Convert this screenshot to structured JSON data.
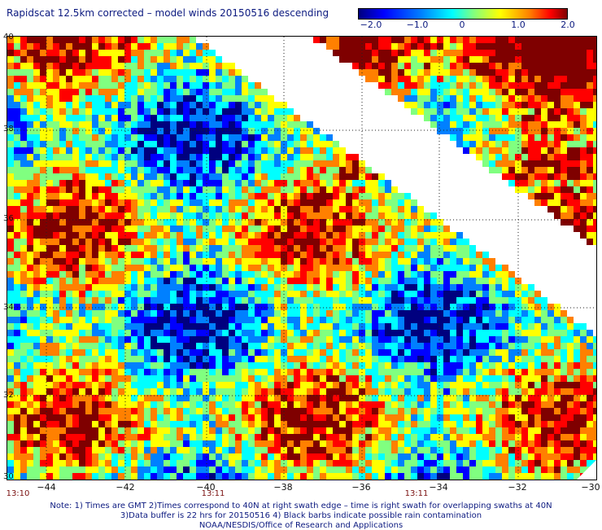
{
  "title": "Rapidscat 12.5km corrected – model winds 20150516 descending",
  "colorbar": {
    "ticks": [
      {
        "label": "−2.0",
        "value": -2.0
      },
      {
        "label": "−1.0",
        "value": -1.0
      },
      {
        "label": "0",
        "value": 0
      },
      {
        "label": "1.0",
        "value": 1.0
      },
      {
        "label": "2.0",
        "value": 2.0
      }
    ],
    "colors": [
      "#00007f",
      "#0000ff",
      "#0080ff",
      "#00ffff",
      "#80ff80",
      "#ffff00",
      "#ff8000",
      "#ff0000",
      "#7f0000"
    ]
  },
  "map": {
    "lon_range": [
      -45,
      -30
    ],
    "lat_range": [
      30,
      40
    ],
    "lat_labels": [
      "40",
      "38",
      "36",
      "34",
      "32",
      "30"
    ],
    "lon_labels": [
      "−44",
      "−42",
      "−40",
      "−38",
      "−36",
      "−34",
      "−32",
      "−30"
    ],
    "grid": "dotted every 2 degrees"
  },
  "times": [
    "13:10",
    "13:11",
    "13:11"
  ],
  "notes": {
    "line1": "Note: 1) Times are GMT 2)Times correspond to 40N at right swath edge – time is right swath for overlapping swaths at 40N",
    "line2": "3)Data buffer is 22 hrs for 20150516 4) Black barbs indicate possible rain contamination",
    "line3": "NOAA/NESDIS/Office of Research and Applications"
  }
}
